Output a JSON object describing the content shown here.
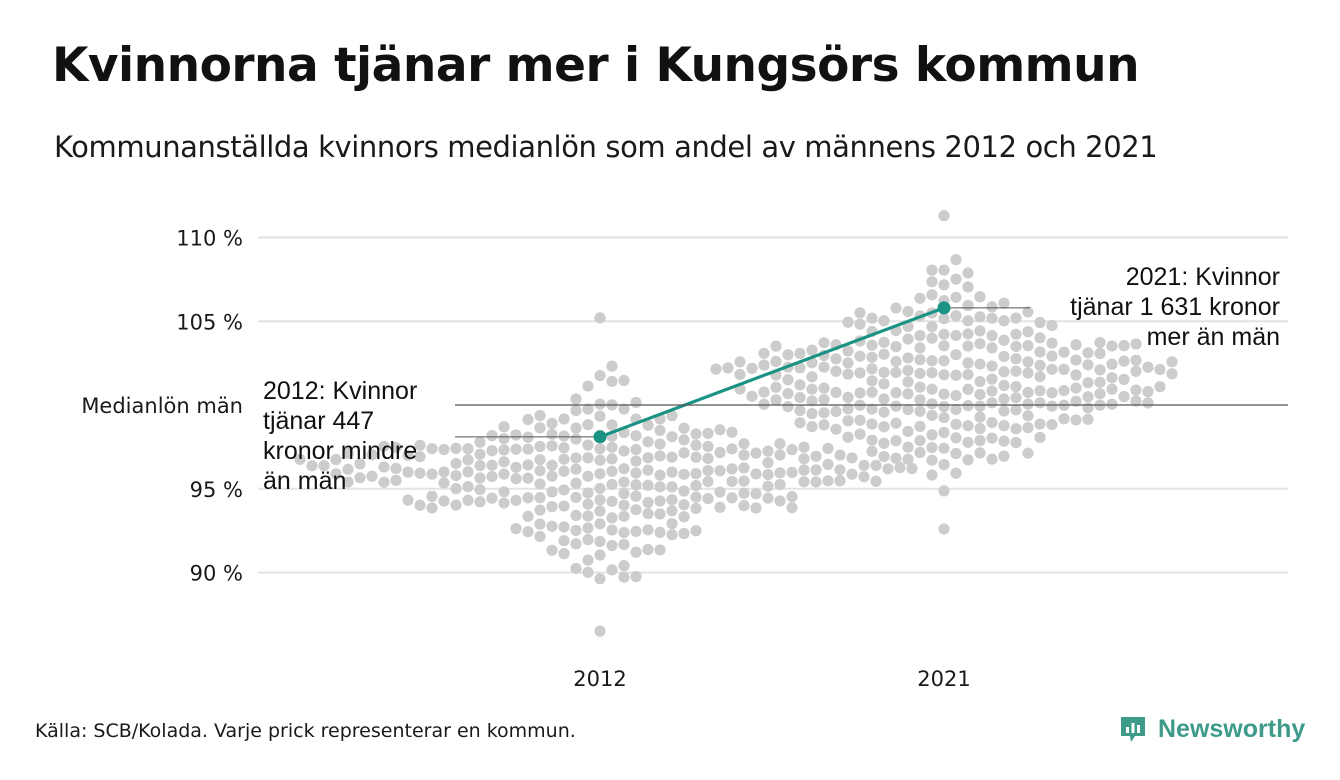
{
  "header": {
    "title": "Kvinnorna tjänar mer i Kungsörs kommun",
    "subtitle": "Kommunanställda kvinnors medianlön som andel av männens 2012 och 2021"
  },
  "footer": {
    "source": "Källa: SCB/Kolada. Varje prick representerar en kommun.",
    "brand": "Newsworthy",
    "brand_icon": "newsworthy-logo-icon"
  },
  "colors": {
    "dots": "#cccccc",
    "highlight": "#1a9385",
    "reference_line": "#555555",
    "gridline": "#e3e3e3",
    "brand": "#3e9b8a"
  },
  "chart_data": {
    "type": "scatter",
    "subtype": "beeswarm",
    "categories": [
      "2012",
      "2021"
    ],
    "ylim": [
      86,
      112
    ],
    "yticks": [
      {
        "value": 90,
        "label": "90 %"
      },
      {
        "value": 95,
        "label": "95 %"
      },
      {
        "value": 105,
        "label": "105 %"
      },
      {
        "value": 110,
        "label": "110 %"
      }
    ],
    "reference_line": {
      "value": 100,
      "label": "Medianlön män"
    },
    "grid": true,
    "distribution": [
      {
        "category": "2012",
        "min": 86.5,
        "median": 96.0,
        "max": 105.2,
        "count": 290
      },
      {
        "category": "2021",
        "min": 92.6,
        "median": 101.5,
        "max": 111.3,
        "count": 290
      }
    ],
    "highlight": {
      "name": "Kungsör",
      "points": [
        {
          "x": "2012",
          "y": 98.1
        },
        {
          "x": "2021",
          "y": 105.8
        }
      ]
    },
    "annotations": [
      {
        "category": "2012",
        "y": 98.1,
        "lines": [
          "2012: Kvinnor",
          "tjänar 447",
          "kronor mindre",
          "än män"
        ]
      },
      {
        "category": "2021",
        "y": 105.8,
        "lines": [
          "2021: Kvinnor",
          "tjänar 1 631 kronor",
          "mer än män"
        ]
      }
    ]
  }
}
